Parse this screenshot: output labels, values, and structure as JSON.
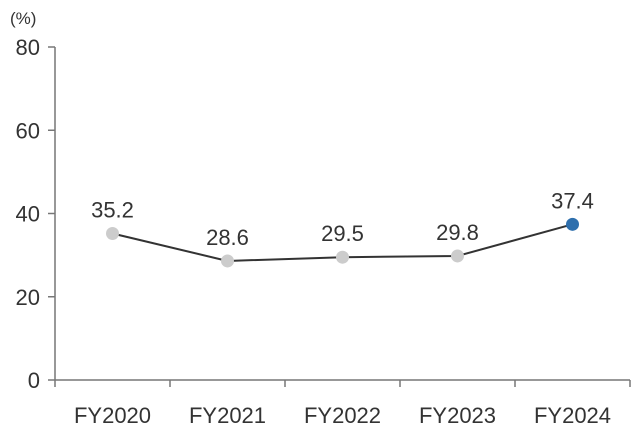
{
  "chart_data": {
    "type": "line",
    "unit_label": "(%)",
    "categories": [
      "FY2020",
      "FY2021",
      "FY2022",
      "FY2023",
      "FY2024"
    ],
    "series": [
      {
        "values": [
          35.2,
          28.6,
          29.5,
          29.8,
          37.4
        ]
      }
    ],
    "value_labels": [
      "35.2",
      "28.6",
      "29.5",
      "29.8",
      "37.4"
    ],
    "ylim": [
      0,
      80
    ],
    "yticks": [
      0,
      20,
      40,
      60,
      80
    ],
    "grid": false,
    "line_color": "#333333",
    "marker_color": "#cccccc",
    "highlight_color": "#2e6fad",
    "highlight_index": 4
  }
}
